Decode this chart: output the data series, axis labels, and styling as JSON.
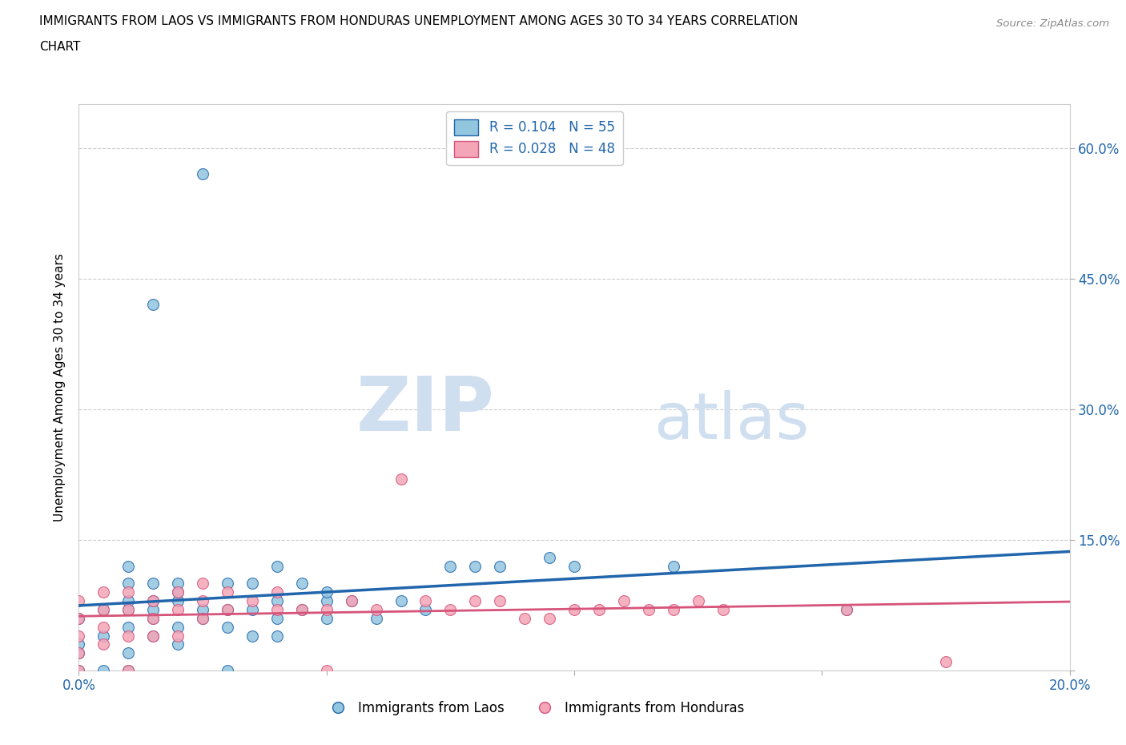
{
  "title_line1": "IMMIGRANTS FROM LAOS VS IMMIGRANTS FROM HONDURAS UNEMPLOYMENT AMONG AGES 30 TO 34 YEARS CORRELATION",
  "title_line2": "CHART",
  "source": "Source: ZipAtlas.com",
  "ylabel": "Unemployment Among Ages 30 to 34 years",
  "xlim": [
    0.0,
    0.2
  ],
  "ylim": [
    0.0,
    0.65
  ],
  "xticks": [
    0.0,
    0.05,
    0.1,
    0.15,
    0.2
  ],
  "yticks": [
    0.0,
    0.15,
    0.3,
    0.45,
    0.6
  ],
  "laos_color": "#92C5DE",
  "honduras_color": "#F4A6B8",
  "laos_line_color": "#2166AC",
  "honduras_line_color": "#D6537A",
  "laos_R": 0.104,
  "laos_N": 55,
  "honduras_R": 0.028,
  "honduras_N": 48,
  "watermark_zip": "ZIP",
  "watermark_atlas": "atlas",
  "background_color": "#FFFFFF",
  "grid_color": "#CCCCCC",
  "tick_color": "#2166AC",
  "laos_x": [
    0.0,
    0.0,
    0.0,
    0.0,
    0.005,
    0.005,
    0.005,
    0.01,
    0.01,
    0.01,
    0.01,
    0.01,
    0.01,
    0.01,
    0.015,
    0.015,
    0.015,
    0.015,
    0.015,
    0.015,
    0.02,
    0.02,
    0.02,
    0.02,
    0.02,
    0.025,
    0.025,
    0.025,
    0.03,
    0.03,
    0.03,
    0.03,
    0.035,
    0.035,
    0.035,
    0.04,
    0.04,
    0.04,
    0.04,
    0.045,
    0.045,
    0.05,
    0.05,
    0.05,
    0.055,
    0.06,
    0.065,
    0.07,
    0.075,
    0.08,
    0.085,
    0.095,
    0.1,
    0.12,
    0.155
  ],
  "laos_y": [
    0.0,
    0.02,
    0.03,
    0.06,
    0.0,
    0.04,
    0.07,
    0.0,
    0.02,
    0.05,
    0.07,
    0.08,
    0.1,
    0.12,
    0.04,
    0.06,
    0.07,
    0.08,
    0.1,
    0.42,
    0.03,
    0.05,
    0.08,
    0.09,
    0.1,
    0.06,
    0.07,
    0.57,
    0.0,
    0.05,
    0.07,
    0.1,
    0.04,
    0.07,
    0.1,
    0.04,
    0.06,
    0.08,
    0.12,
    0.07,
    0.1,
    0.06,
    0.08,
    0.09,
    0.08,
    0.06,
    0.08,
    0.07,
    0.12,
    0.12,
    0.12,
    0.13,
    0.12,
    0.12,
    0.07
  ],
  "honduras_x": [
    0.0,
    0.0,
    0.0,
    0.0,
    0.0,
    0.005,
    0.005,
    0.005,
    0.005,
    0.01,
    0.01,
    0.01,
    0.01,
    0.015,
    0.015,
    0.015,
    0.02,
    0.02,
    0.02,
    0.025,
    0.025,
    0.025,
    0.03,
    0.03,
    0.035,
    0.04,
    0.04,
    0.045,
    0.05,
    0.05,
    0.055,
    0.06,
    0.065,
    0.07,
    0.075,
    0.08,
    0.085,
    0.09,
    0.095,
    0.1,
    0.105,
    0.11,
    0.115,
    0.12,
    0.125,
    0.13,
    0.155,
    0.175
  ],
  "honduras_y": [
    0.0,
    0.02,
    0.04,
    0.06,
    0.08,
    0.03,
    0.05,
    0.07,
    0.09,
    0.0,
    0.04,
    0.07,
    0.09,
    0.04,
    0.06,
    0.08,
    0.04,
    0.07,
    0.09,
    0.06,
    0.08,
    0.1,
    0.07,
    0.09,
    0.08,
    0.07,
    0.09,
    0.07,
    0.0,
    0.07,
    0.08,
    0.07,
    0.22,
    0.08,
    0.07,
    0.08,
    0.08,
    0.06,
    0.06,
    0.07,
    0.07,
    0.08,
    0.07,
    0.07,
    0.08,
    0.07,
    0.07,
    0.01
  ]
}
